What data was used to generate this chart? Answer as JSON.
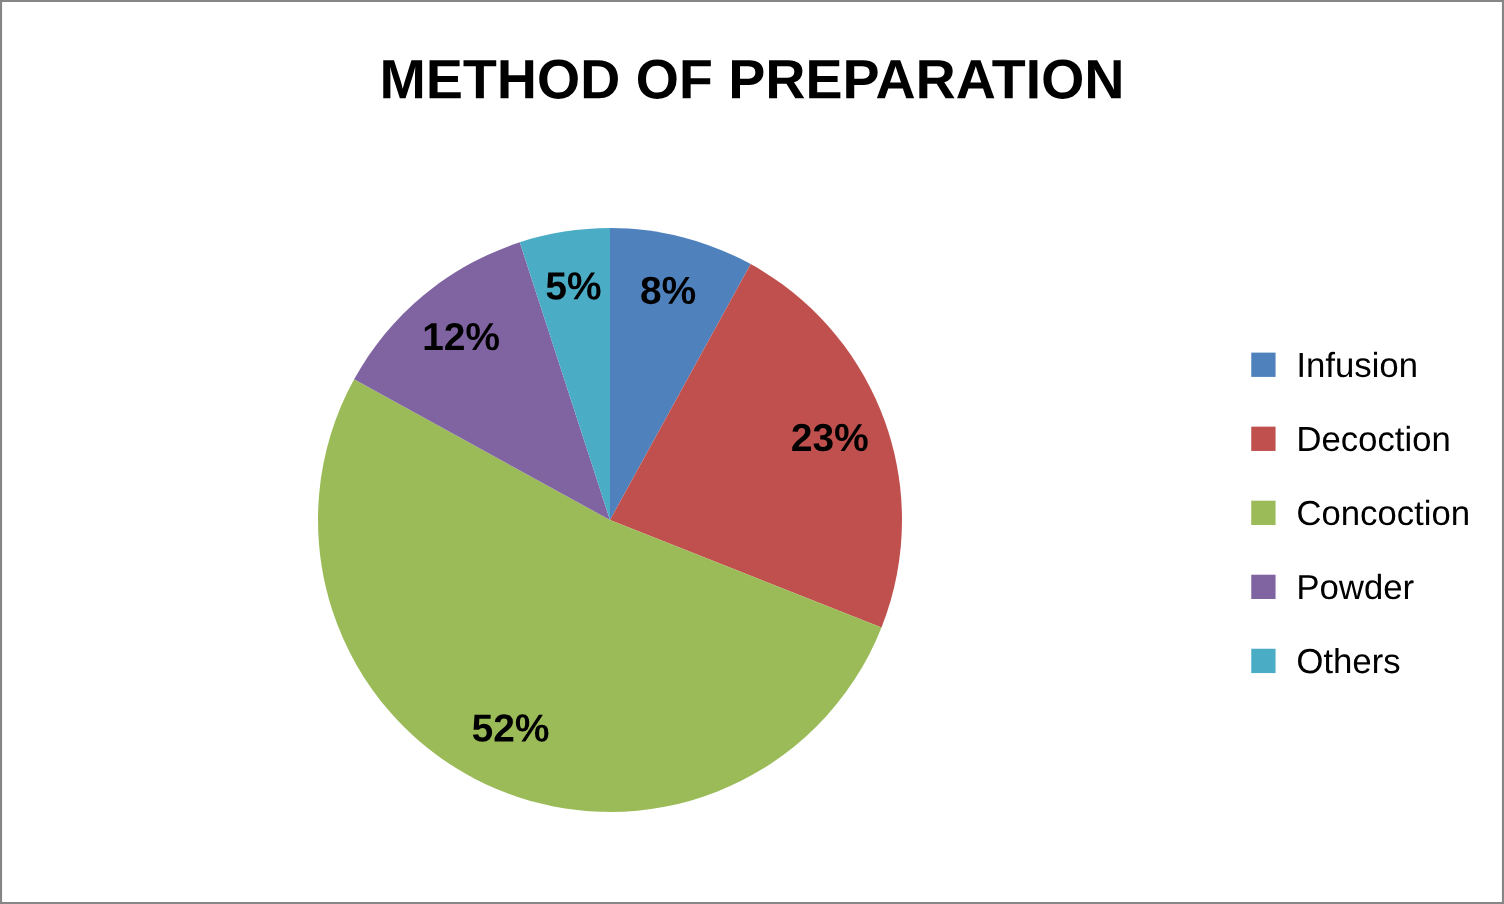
{
  "chart_data": {
    "type": "pie",
    "title": "METHOD OF PREPARATION",
    "categories": [
      "Infusion",
      "Decoction",
      "Concoction",
      "Powder",
      "Others"
    ],
    "values": [
      8,
      23,
      52,
      12,
      5
    ],
    "colors": [
      "#4f81bd",
      "#c0504d",
      "#9bbb59",
      "#8064a2",
      "#4bacc6"
    ],
    "value_labels": [
      "8%",
      "23%",
      "52%",
      "12%",
      "5%"
    ],
    "legend": "right"
  }
}
